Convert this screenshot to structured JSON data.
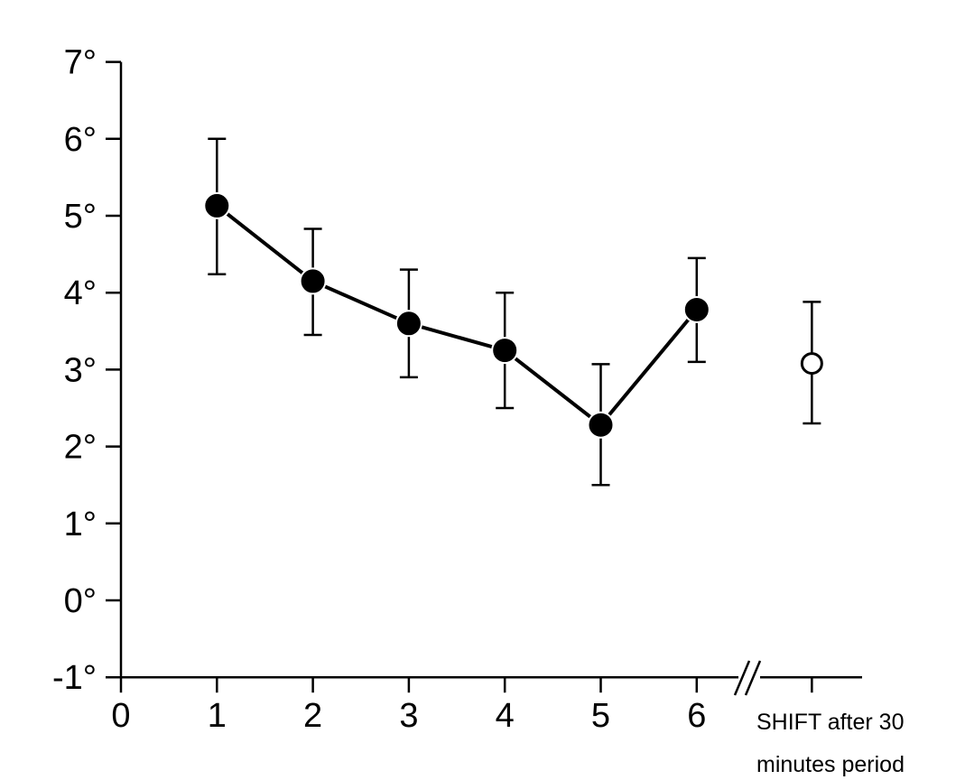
{
  "chart_data": {
    "type": "line",
    "title": "",
    "xlabel": "",
    "ylabel": "",
    "xlim": [
      0,
      7.2
    ],
    "ylim": [
      -1,
      7
    ],
    "x_ticks": [
      "0",
      "1",
      "2",
      "3",
      "4",
      "5",
      "6"
    ],
    "y_ticks": [
      "-1°",
      "0°",
      "1°",
      "2°",
      "3°",
      "4°",
      "5°",
      "6°",
      "7°"
    ],
    "y_tick_values": [
      -1,
      0,
      1,
      2,
      3,
      4,
      5,
      6,
      7
    ],
    "x_tick_values": [
      0,
      1,
      2,
      3,
      4,
      5,
      6
    ],
    "axis_break": true,
    "grid": false,
    "series": [
      {
        "marker": "filled-circle",
        "connected": true,
        "x": [
          1,
          2,
          3,
          4,
          5,
          6
        ],
        "y": [
          5.13,
          4.15,
          3.6,
          3.25,
          2.28,
          3.78
        ],
        "err_low": [
          4.24,
          3.45,
          2.9,
          2.5,
          1.5,
          3.1
        ],
        "err_high": [
          6.0,
          4.83,
          4.3,
          4.0,
          3.07,
          4.45
        ]
      },
      {
        "marker": "open-circle",
        "connected": false,
        "x": [
          7.2
        ],
        "y": [
          3.08
        ],
        "err_low": [
          2.3
        ],
        "err_high": [
          3.88
        ]
      }
    ],
    "extra_label": {
      "line1": "SHIFT after 30",
      "line2": "minutes period"
    }
  }
}
